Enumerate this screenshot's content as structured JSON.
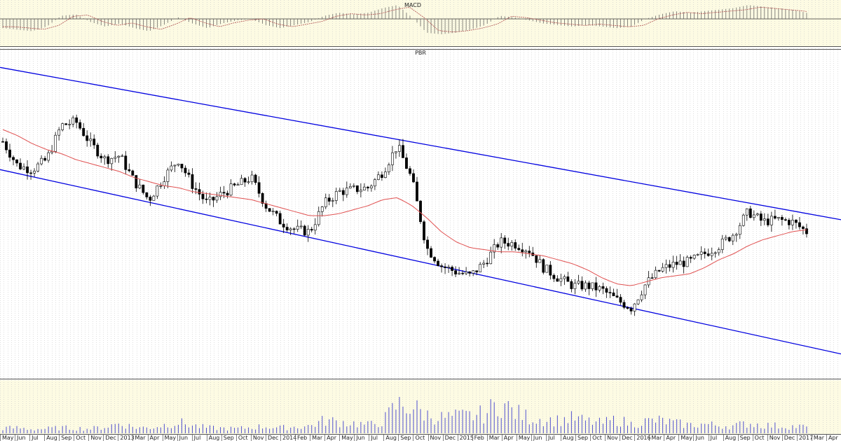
{
  "panels": {
    "macd_title": "MACD",
    "price_title": "PBR"
  },
  "colors": {
    "panel_bg": "#fdfbe3",
    "grid": "#c8c8c8",
    "candle": "#000000",
    "channel": "#0000e0",
    "moving_average": "#e05050",
    "macd_signal": "#b05050",
    "volume": "#5050d0"
  },
  "chart_data": {
    "type": "candlestick",
    "title": "PBR",
    "x_axis_labels": [
      "May",
      "Jun",
      "Jul",
      "Aug",
      "Sep",
      "Oct",
      "Nov",
      "Dec",
      "2013",
      "Mar",
      "Apr",
      "May",
      "Jun",
      "Jul",
      "Aug",
      "Sep",
      "Oct",
      "Nov",
      "Dec",
      "2014",
      "Feb",
      "Mar",
      "Apr",
      "May",
      "Jun",
      "Jul",
      "Aug",
      "Sep",
      "Oct",
      "Nov",
      "Dec",
      "2015",
      "Feb",
      "Mar",
      "Apr",
      "May",
      "Jun",
      "Jul",
      "Aug",
      "Sep",
      "Oct",
      "Nov",
      "Dec",
      "2016",
      "Mar",
      "Apr",
      "May",
      "Jun",
      "Jul",
      "Aug",
      "Sep",
      "Oct",
      "Nov",
      "Dec",
      "2017",
      "Mar",
      "Apr"
    ],
    "price_close": [
      19.8,
      18.6,
      18.4,
      18.9,
      20.6,
      20.8,
      19.7,
      18.9,
      19.1,
      17.8,
      16.9,
      18.0,
      18.9,
      17.6,
      16.7,
      17.2,
      17.6,
      18.0,
      16.6,
      15.8,
      15.4,
      15.3,
      16.7,
      17.3,
      17.4,
      17.5,
      18.3,
      19.6,
      17.9,
      14.5,
      13.6,
      13.3,
      13.1,
      13.8,
      14.8,
      14.7,
      14.4,
      13.5,
      13.0,
      12.6,
      12.6,
      12.4,
      11.9,
      11.5,
      12.7,
      13.4,
      13.7,
      13.8,
      14.2,
      14.6,
      15.2,
      16.3,
      15.8,
      15.9,
      15.8,
      15.3
    ],
    "moving_average": [
      20.4,
      20.1,
      19.7,
      19.4,
      19.2,
      18.9,
      18.7,
      18.5,
      18.3,
      18.0,
      17.8,
      17.6,
      17.5,
      17.3,
      17.2,
      17.1,
      17.0,
      16.9,
      16.7,
      16.5,
      16.3,
      16.1,
      16.1,
      16.2,
      16.4,
      16.6,
      16.9,
      17.0,
      16.6,
      16.0,
      15.3,
      14.8,
      14.5,
      14.4,
      14.3,
      14.3,
      14.2,
      14.1,
      13.9,
      13.7,
      13.4,
      13.0,
      12.7,
      12.6,
      12.8,
      13.0,
      13.1,
      13.2,
      13.5,
      13.9,
      14.2,
      14.6,
      14.9,
      15.1,
      15.3,
      15.4
    ],
    "volume": [
      0.11,
      0.12,
      0.09,
      0.1,
      0.12,
      0.11,
      0.1,
      0.14,
      0.22,
      0.13,
      0.12,
      0.18,
      0.24,
      0.17,
      0.12,
      0.11,
      0.1,
      0.13,
      0.15,
      0.12,
      0.14,
      0.16,
      0.28,
      0.25,
      0.22,
      0.18,
      0.26,
      0.62,
      0.58,
      0.4,
      0.34,
      0.36,
      0.38,
      0.42,
      0.68,
      0.46,
      0.34,
      0.3,
      0.28,
      0.33,
      0.26,
      0.22,
      0.3,
      0.2,
      0.26,
      0.28,
      0.22,
      0.18,
      0.2,
      0.17,
      0.16,
      0.22,
      0.18,
      0.16,
      0.15,
      0.14
    ],
    "macd_histogram": [
      -0.6,
      -0.7,
      -0.8,
      -0.5,
      0.2,
      0.3,
      -0.2,
      -0.5,
      -0.3,
      -0.6,
      -0.8,
      -0.4,
      0.1,
      -0.3,
      -0.6,
      -0.3,
      -0.1,
      0.0,
      -0.4,
      -0.6,
      -0.4,
      -0.2,
      0.2,
      0.4,
      0.3,
      0.4,
      0.7,
      0.9,
      0.1,
      -0.9,
      -1.0,
      -0.9,
      -0.7,
      -0.4,
      0.2,
      0.1,
      -0.1,
      -0.3,
      -0.4,
      -0.5,
      -0.4,
      -0.5,
      -0.6,
      -0.5,
      0.0,
      0.3,
      0.5,
      0.4,
      0.5,
      0.6,
      0.7,
      0.9,
      0.8,
      0.7,
      0.6,
      0.4
    ],
    "channel": {
      "upper": {
        "start": 23.5,
        "end": 15.9
      },
      "lower": {
        "start": 18.4,
        "end": 9.2
      }
    },
    "grid": true
  }
}
